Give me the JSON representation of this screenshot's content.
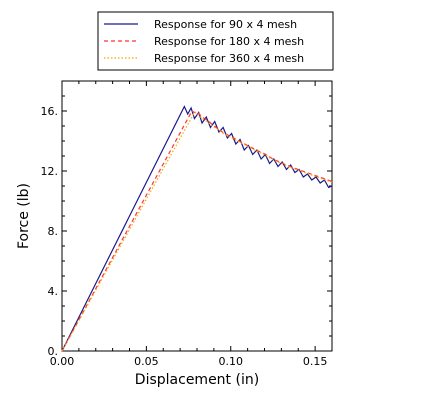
{
  "chart_data": {
    "type": "line",
    "title": "",
    "xlabel": "Displacement (in)",
    "ylabel": "Force (lb)",
    "xlim": [
      0,
      0.16
    ],
    "ylim": [
      0,
      18
    ],
    "x_ticks": [
      0,
      0.05,
      0.1,
      0.15
    ],
    "x_tick_labels": [
      "0.00",
      "0.05",
      "0.10",
      "0.15"
    ],
    "y_ticks": [
      0,
      4,
      8,
      12,
      16
    ],
    "y_tick_labels": [
      "0.",
      "4.",
      "8.",
      "12.",
      "16."
    ],
    "grid": false,
    "legend_position": "top-center, outside plot",
    "series": [
      {
        "name": "Response for 90 x 4 mesh",
        "color": "#1a1a8c",
        "dash": "solid",
        "points": [
          [
            0,
            0
          ],
          [
            0.0725,
            16.3
          ],
          [
            0.0745,
            15.8
          ],
          [
            0.0765,
            16.2
          ],
          [
            0.0785,
            15.5
          ],
          [
            0.081,
            15.9
          ],
          [
            0.083,
            15.2
          ],
          [
            0.0855,
            15.6
          ],
          [
            0.088,
            14.9
          ],
          [
            0.0905,
            15.3
          ],
          [
            0.093,
            14.6
          ],
          [
            0.0955,
            14.9
          ],
          [
            0.098,
            14.2
          ],
          [
            0.1005,
            14.5
          ],
          [
            0.103,
            13.8
          ],
          [
            0.1055,
            14.1
          ],
          [
            0.108,
            13.4
          ],
          [
            0.1105,
            13.7
          ],
          [
            0.113,
            13.1
          ],
          [
            0.1155,
            13.4
          ],
          [
            0.118,
            12.8
          ],
          [
            0.1205,
            13.1
          ],
          [
            0.123,
            12.5
          ],
          [
            0.1255,
            12.8
          ],
          [
            0.128,
            12.3
          ],
          [
            0.1305,
            12.6
          ],
          [
            0.133,
            12.1
          ],
          [
            0.1355,
            12.4
          ],
          [
            0.138,
            11.9
          ],
          [
            0.1405,
            12.1
          ],
          [
            0.143,
            11.6
          ],
          [
            0.1455,
            11.8
          ],
          [
            0.148,
            11.4
          ],
          [
            0.1505,
            11.6
          ],
          [
            0.153,
            11.2
          ],
          [
            0.1555,
            11.4
          ],
          [
            0.158,
            10.9
          ],
          [
            0.16,
            11.0
          ]
        ]
      },
      {
        "name": "Response for 180 x 4 mesh",
        "color": "#ff3333",
        "dash": "dashed",
        "points": [
          [
            0,
            0
          ],
          [
            0.077,
            16.0
          ],
          [
            0.0785,
            15.9
          ],
          [
            0.08,
            15.95
          ],
          [
            0.083,
            15.6
          ],
          [
            0.086,
            15.4
          ],
          [
            0.089,
            15.1
          ],
          [
            0.092,
            14.85
          ],
          [
            0.095,
            14.6
          ],
          [
            0.1,
            14.3
          ],
          [
            0.105,
            14.0
          ],
          [
            0.11,
            13.7
          ],
          [
            0.115,
            13.4
          ],
          [
            0.12,
            13.15
          ],
          [
            0.125,
            12.8
          ],
          [
            0.13,
            12.55
          ],
          [
            0.135,
            12.3
          ],
          [
            0.14,
            12.1
          ],
          [
            0.145,
            11.9
          ],
          [
            0.15,
            11.7
          ],
          [
            0.155,
            11.5
          ],
          [
            0.16,
            11.3
          ]
        ]
      },
      {
        "name": "Response for 360 x 4 mesh",
        "color": "#ffa500",
        "dash": "dotted",
        "points": [
          [
            0,
            0
          ],
          [
            0.0785,
            15.9
          ],
          [
            0.08,
            15.85
          ],
          [
            0.083,
            15.5
          ],
          [
            0.086,
            15.3
          ],
          [
            0.089,
            15.0
          ],
          [
            0.092,
            14.8
          ],
          [
            0.095,
            14.55
          ],
          [
            0.1,
            14.25
          ],
          [
            0.105,
            13.95
          ],
          [
            0.11,
            13.65
          ],
          [
            0.115,
            13.35
          ],
          [
            0.12,
            13.1
          ],
          [
            0.125,
            12.75
          ],
          [
            0.13,
            12.5
          ],
          [
            0.135,
            12.25
          ],
          [
            0.14,
            12.05
          ],
          [
            0.145,
            11.85
          ],
          [
            0.15,
            11.65
          ],
          [
            0.155,
            11.45
          ],
          [
            0.16,
            11.25
          ]
        ]
      }
    ]
  }
}
